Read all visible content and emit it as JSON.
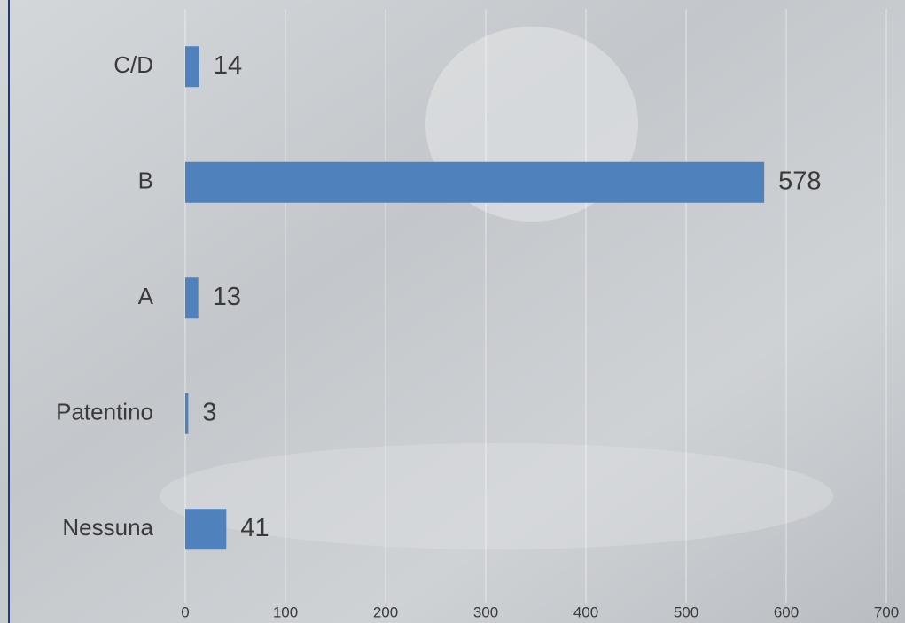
{
  "chart_data": {
    "type": "hbar",
    "categories": [
      "C/D",
      "B",
      "A",
      "Patentino",
      "Nessuna"
    ],
    "values": [
      14,
      578,
      13,
      3,
      41
    ],
    "color": "#4f81bd",
    "xlim": [
      0,
      700
    ],
    "xticks": [
      0,
      100,
      200,
      300,
      400,
      500,
      600,
      700
    ],
    "grid": true
  }
}
